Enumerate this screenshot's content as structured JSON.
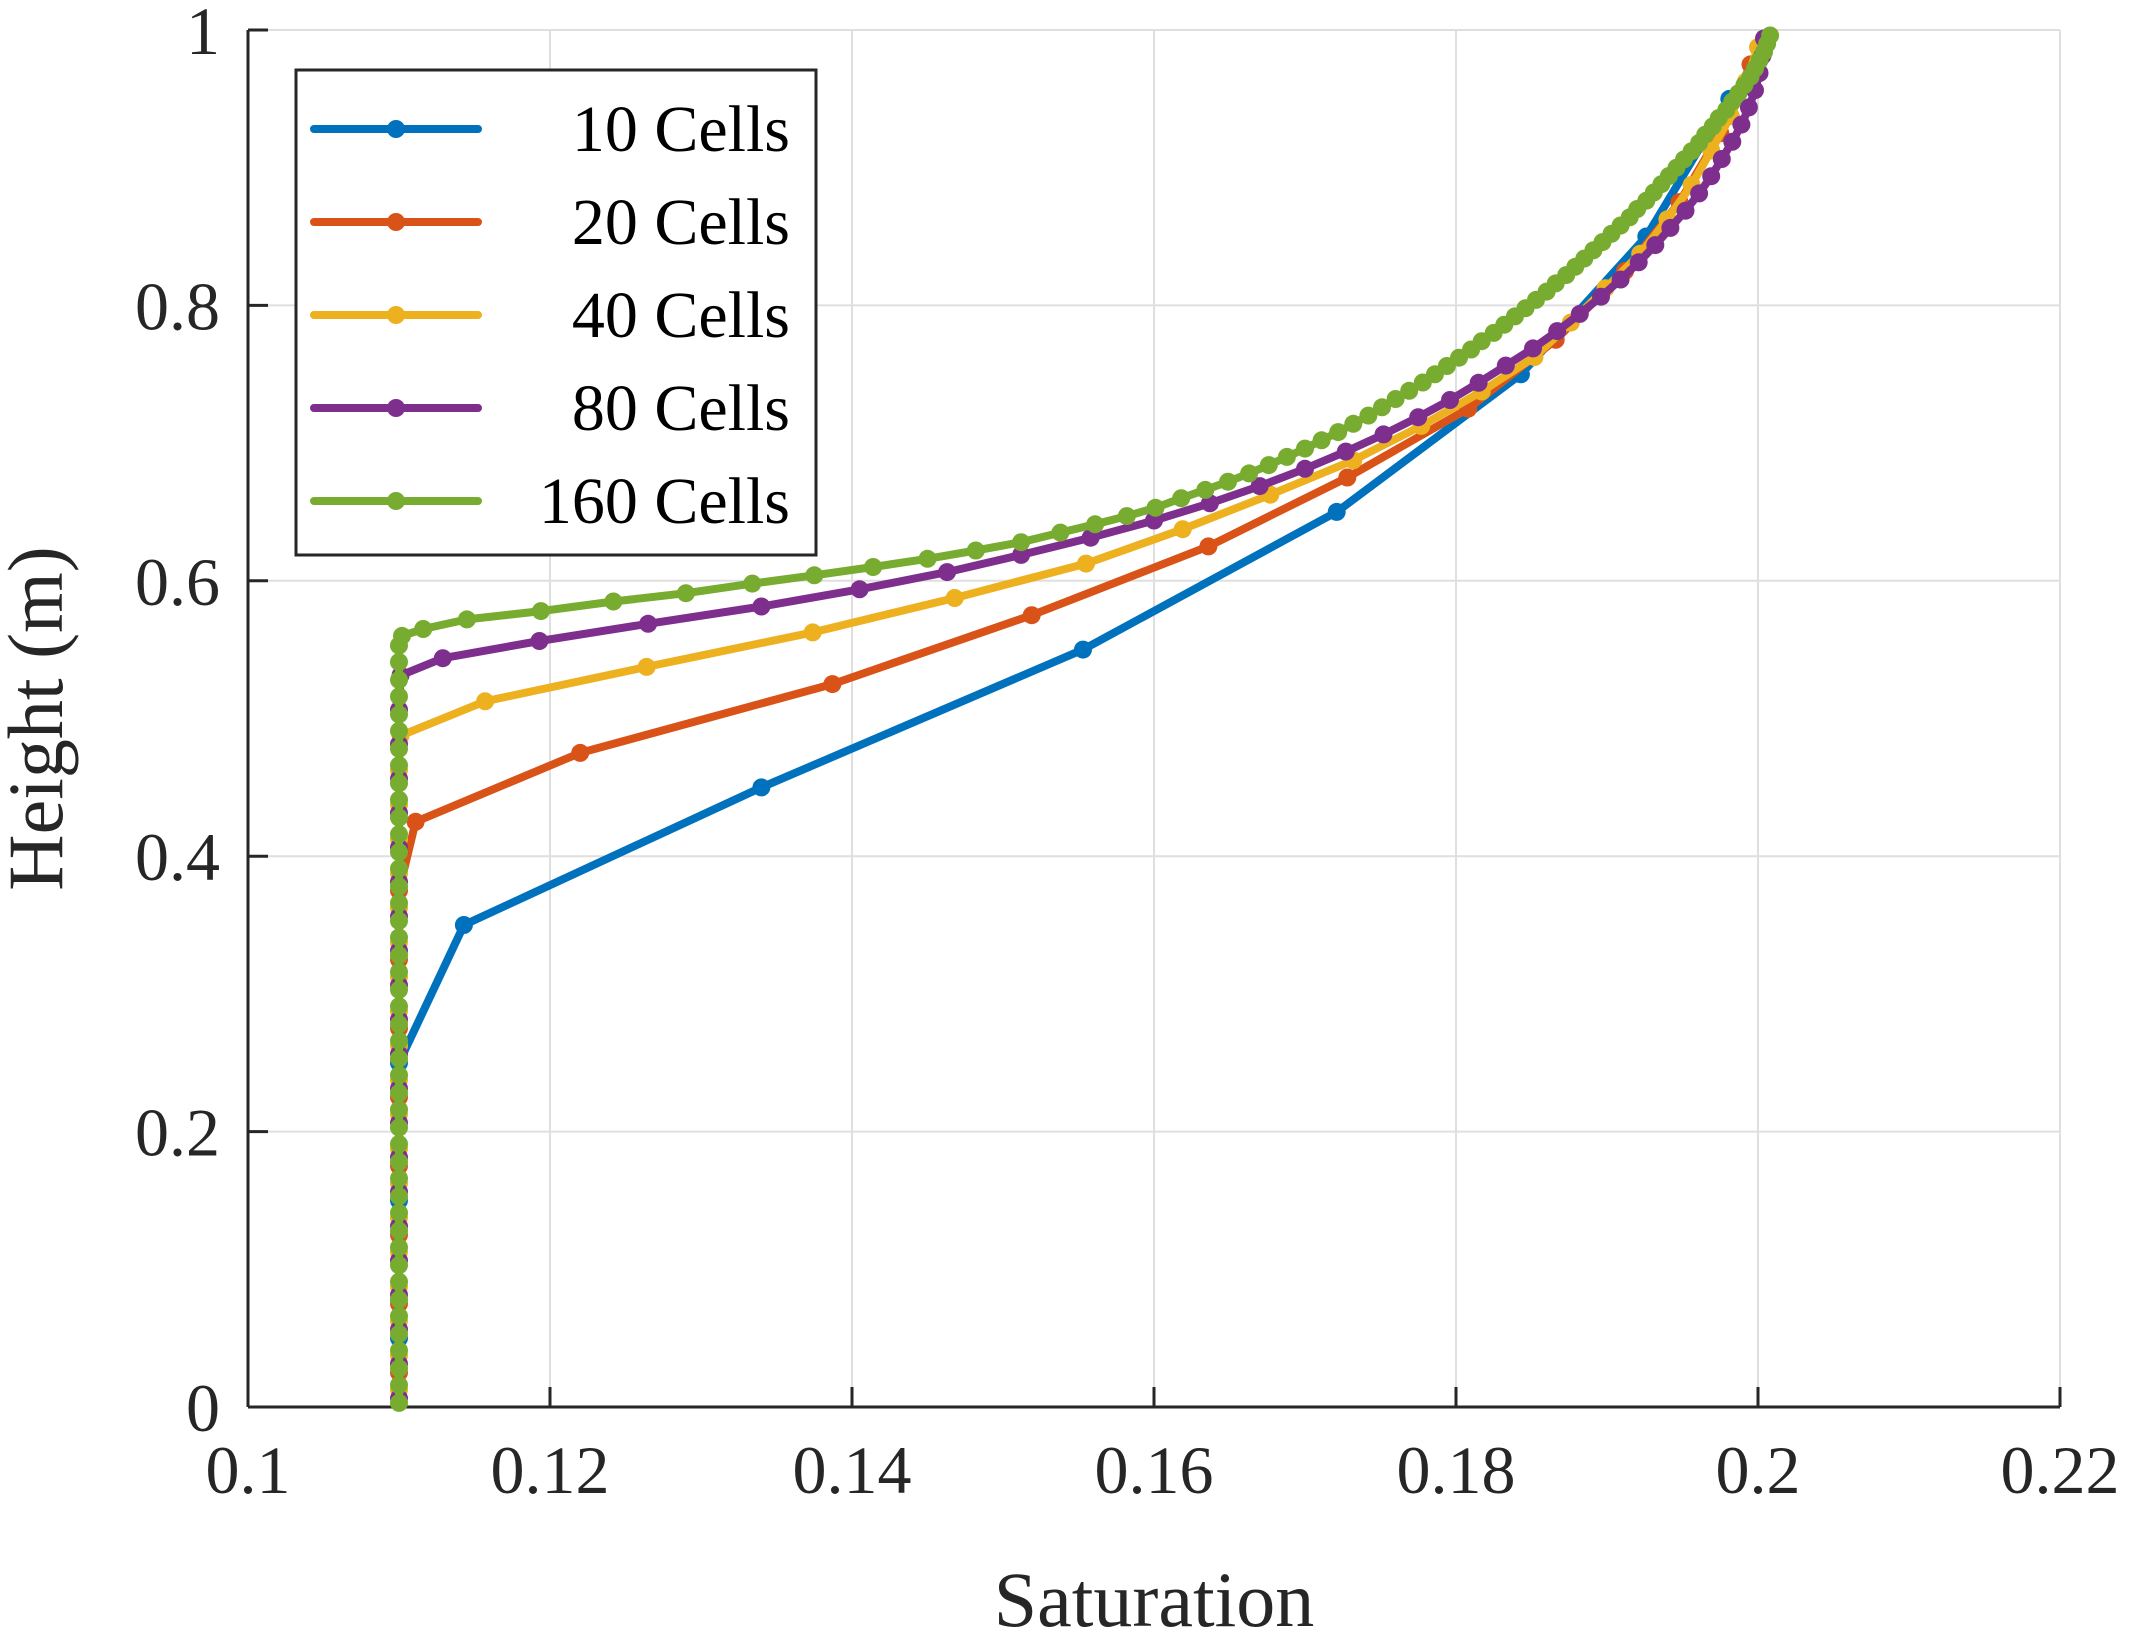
{
  "chart_data": {
    "type": "line",
    "xlabel": "Saturation",
    "ylabel": "Height (m)",
    "xlim": [
      0.1,
      0.22
    ],
    "ylim": [
      0,
      1
    ],
    "x_ticks": [
      0.1,
      0.12,
      0.14,
      0.16,
      0.18,
      0.2,
      0.22
    ],
    "y_ticks": [
      0,
      0.2,
      0.4,
      0.6,
      0.8,
      1
    ],
    "x_tick_labels": [
      "0.1",
      "0.12",
      "0.14",
      "0.16",
      "0.18",
      "0.2",
      "0.22"
    ],
    "y_tick_labels": [
      "0",
      "0.2",
      "0.4",
      "0.6",
      "0.8",
      "1"
    ],
    "grid": true,
    "legend_position": "top-left",
    "series": [
      {
        "name": "10 Cells",
        "color": "#0072BD",
        "points": [
          [
            0.11,
            0.05
          ],
          [
            0.11,
            0.15
          ],
          [
            0.11,
            0.25
          ],
          [
            0.1143,
            0.35
          ],
          [
            0.134,
            0.45
          ],
          [
            0.1553,
            0.55
          ],
          [
            0.1721,
            0.65
          ],
          [
            0.1843,
            0.75
          ],
          [
            0.1926,
            0.85
          ],
          [
            0.1981,
            0.95
          ]
        ]
      },
      {
        "name": "20 Cells",
        "color": "#D95319",
        "points": [
          [
            0.11,
            0.025
          ],
          [
            0.11,
            0.075
          ],
          [
            0.11,
            0.125
          ],
          [
            0.11,
            0.175
          ],
          [
            0.11,
            0.225
          ],
          [
            0.11,
            0.275
          ],
          [
            0.11,
            0.325
          ],
          [
            0.11,
            0.375
          ],
          [
            0.1111,
            0.425
          ],
          [
            0.122,
            0.475
          ],
          [
            0.1387,
            0.525
          ],
          [
            0.1519,
            0.575
          ],
          [
            0.1636,
            0.625
          ],
          [
            0.1728,
            0.675
          ],
          [
            0.1808,
            0.725
          ],
          [
            0.1866,
            0.775
          ],
          [
            0.1912,
            0.825
          ],
          [
            0.1948,
            0.875
          ],
          [
            0.1975,
            0.925
          ],
          [
            0.1995,
            0.975
          ]
        ]
      },
      {
        "name": "40 Cells",
        "color": "#EDB120",
        "points": [
          [
            0.11,
            0.0125
          ],
          [
            0.11,
            0.0375
          ],
          [
            0.11,
            0.0625
          ],
          [
            0.11,
            0.0875
          ],
          [
            0.11,
            0.1125
          ],
          [
            0.11,
            0.1375
          ],
          [
            0.11,
            0.1625
          ],
          [
            0.11,
            0.1875
          ],
          [
            0.11,
            0.2125
          ],
          [
            0.11,
            0.2375
          ],
          [
            0.11,
            0.2625
          ],
          [
            0.11,
            0.2875
          ],
          [
            0.11,
            0.3125
          ],
          [
            0.11,
            0.3375
          ],
          [
            0.11,
            0.3625
          ],
          [
            0.11,
            0.3875
          ],
          [
            0.11,
            0.4125
          ],
          [
            0.11,
            0.4375
          ],
          [
            0.11,
            0.4625
          ],
          [
            0.1101,
            0.4875
          ],
          [
            0.1157,
            0.5125
          ],
          [
            0.1264,
            0.5375
          ],
          [
            0.1374,
            0.5625
          ],
          [
            0.1468,
            0.5875
          ],
          [
            0.1555,
            0.6125
          ],
          [
            0.1619,
            0.6375
          ],
          [
            0.1677,
            0.6625
          ],
          [
            0.1732,
            0.6875
          ],
          [
            0.1777,
            0.7125
          ],
          [
            0.1817,
            0.7375
          ],
          [
            0.1852,
            0.7625
          ],
          [
            0.1876,
            0.7875
          ],
          [
            0.1899,
            0.8125
          ],
          [
            0.1922,
            0.8375
          ],
          [
            0.194,
            0.8625
          ],
          [
            0.1956,
            0.8875
          ],
          [
            0.1969,
            0.9125
          ],
          [
            0.1982,
            0.9375
          ],
          [
            0.1992,
            0.9625
          ],
          [
            0.2,
            0.9875
          ]
        ]
      },
      {
        "name": "80 Cells",
        "color": "#7E2F8E",
        "points": [
          [
            0.11,
            0.0063
          ],
          [
            0.11,
            0.0313
          ],
          [
            0.11,
            0.0563
          ],
          [
            0.11,
            0.0813
          ],
          [
            0.11,
            0.1063
          ],
          [
            0.11,
            0.1313
          ],
          [
            0.11,
            0.1563
          ],
          [
            0.11,
            0.1813
          ],
          [
            0.11,
            0.2063
          ],
          [
            0.11,
            0.2313
          ],
          [
            0.11,
            0.2563
          ],
          [
            0.11,
            0.2813
          ],
          [
            0.11,
            0.3063
          ],
          [
            0.11,
            0.3313
          ],
          [
            0.11,
            0.3563
          ],
          [
            0.11,
            0.3813
          ],
          [
            0.11,
            0.4063
          ],
          [
            0.11,
            0.4313
          ],
          [
            0.11,
            0.4563
          ],
          [
            0.11,
            0.4813
          ],
          [
            0.11,
            0.5063
          ],
          [
            0.1101,
            0.5313
          ],
          [
            0.1129,
            0.5438
          ],
          [
            0.1193,
            0.5563
          ],
          [
            0.1265,
            0.5688
          ],
          [
            0.134,
            0.5813
          ],
          [
            0.1405,
            0.5938
          ],
          [
            0.1463,
            0.6063
          ],
          [
            0.1512,
            0.6188
          ],
          [
            0.1558,
            0.6313
          ],
          [
            0.16,
            0.6438
          ],
          [
            0.1637,
            0.6563
          ],
          [
            0.167,
            0.6688
          ],
          [
            0.17,
            0.6813
          ],
          [
            0.1727,
            0.6938
          ],
          [
            0.1752,
            0.7063
          ],
          [
            0.1775,
            0.7188
          ],
          [
            0.1796,
            0.7313
          ],
          [
            0.1815,
            0.7438
          ],
          [
            0.1833,
            0.7563
          ],
          [
            0.1851,
            0.7688
          ],
          [
            0.1867,
            0.7813
          ],
          [
            0.1882,
            0.7938
          ],
          [
            0.1896,
            0.8063
          ],
          [
            0.1909,
            0.8188
          ],
          [
            0.1921,
            0.8313
          ],
          [
            0.1932,
            0.8438
          ],
          [
            0.1942,
            0.8563
          ],
          [
            0.1952,
            0.8688
          ],
          [
            0.1961,
            0.8813
          ],
          [
            0.1969,
            0.8938
          ],
          [
            0.1976,
            0.9063
          ],
          [
            0.1983,
            0.9188
          ],
          [
            0.1989,
            0.9313
          ],
          [
            0.1994,
            0.9438
          ],
          [
            0.1998,
            0.9563
          ],
          [
            0.2001,
            0.9688
          ],
          [
            0.2003,
            0.9813
          ],
          [
            0.2004,
            0.9938
          ]
        ]
      },
      {
        "name": "160 Cells",
        "color": "#77AC30",
        "points": [
          [
            0.11,
            0.003
          ],
          [
            0.11,
            0.016
          ],
          [
            0.11,
            0.028
          ],
          [
            0.11,
            0.041
          ],
          [
            0.11,
            0.053
          ],
          [
            0.11,
            0.066
          ],
          [
            0.11,
            0.078
          ],
          [
            0.11,
            0.091
          ],
          [
            0.11,
            0.103
          ],
          [
            0.11,
            0.116
          ],
          [
            0.11,
            0.128
          ],
          [
            0.11,
            0.141
          ],
          [
            0.11,
            0.153
          ],
          [
            0.11,
            0.166
          ],
          [
            0.11,
            0.178
          ],
          [
            0.11,
            0.191
          ],
          [
            0.11,
            0.203
          ],
          [
            0.11,
            0.216
          ],
          [
            0.11,
            0.228
          ],
          [
            0.11,
            0.241
          ],
          [
            0.11,
            0.253
          ],
          [
            0.11,
            0.266
          ],
          [
            0.11,
            0.278
          ],
          [
            0.11,
            0.291
          ],
          [
            0.11,
            0.303
          ],
          [
            0.11,
            0.316
          ],
          [
            0.11,
            0.328
          ],
          [
            0.11,
            0.341
          ],
          [
            0.11,
            0.353
          ],
          [
            0.11,
            0.366
          ],
          [
            0.11,
            0.378
          ],
          [
            0.11,
            0.391
          ],
          [
            0.11,
            0.403
          ],
          [
            0.11,
            0.416
          ],
          [
            0.11,
            0.428
          ],
          [
            0.11,
            0.441
          ],
          [
            0.11,
            0.453
          ],
          [
            0.11,
            0.466
          ],
          [
            0.11,
            0.478
          ],
          [
            0.11,
            0.491
          ],
          [
            0.11,
            0.503
          ],
          [
            0.11,
            0.516
          ],
          [
            0.11,
            0.528
          ],
          [
            0.11,
            0.541
          ],
          [
            0.11,
            0.553
          ],
          [
            0.1102,
            0.56
          ],
          [
            0.1116,
            0.565
          ],
          [
            0.1145,
            0.572
          ],
          [
            0.1194,
            0.578
          ],
          [
            0.1242,
            0.585
          ],
          [
            0.129,
            0.591
          ],
          [
            0.1334,
            0.598
          ],
          [
            0.1375,
            0.604
          ],
          [
            0.1414,
            0.61
          ],
          [
            0.145,
            0.616
          ],
          [
            0.1482,
            0.622
          ],
          [
            0.1512,
            0.628
          ],
          [
            0.1538,
            0.635
          ],
          [
            0.1561,
            0.641
          ],
          [
            0.1582,
            0.647
          ],
          [
            0.1601,
            0.653
          ],
          [
            0.1618,
            0.66
          ],
          [
            0.1634,
            0.666
          ],
          [
            0.1649,
            0.672
          ],
          [
            0.1663,
            0.678
          ],
          [
            0.1676,
            0.684
          ],
          [
            0.1688,
            0.69
          ],
          [
            0.17,
            0.696
          ],
          [
            0.1711,
            0.702
          ],
          [
            0.1722,
            0.708
          ],
          [
            0.1732,
            0.714
          ],
          [
            0.1742,
            0.72
          ],
          [
            0.1751,
            0.726
          ],
          [
            0.176,
            0.732
          ],
          [
            0.1769,
            0.738
          ],
          [
            0.1778,
            0.744
          ],
          [
            0.1786,
            0.75
          ],
          [
            0.1794,
            0.756
          ],
          [
            0.1802,
            0.762
          ],
          [
            0.181,
            0.768
          ],
          [
            0.1817,
            0.774
          ],
          [
            0.1825,
            0.78
          ],
          [
            0.1832,
            0.786
          ],
          [
            0.1839,
            0.792
          ],
          [
            0.1846,
            0.798
          ],
          [
            0.1853,
            0.804
          ],
          [
            0.186,
            0.81
          ],
          [
            0.1866,
            0.816
          ],
          [
            0.1873,
            0.822
          ],
          [
            0.1879,
            0.828
          ],
          [
            0.1885,
            0.834
          ],
          [
            0.1891,
            0.84
          ],
          [
            0.1897,
            0.846
          ],
          [
            0.1903,
            0.852
          ],
          [
            0.1909,
            0.858
          ],
          [
            0.1915,
            0.864
          ],
          [
            0.192,
            0.87
          ],
          [
            0.1926,
            0.876
          ],
          [
            0.1931,
            0.882
          ],
          [
            0.1936,
            0.888
          ],
          [
            0.1941,
            0.894
          ],
          [
            0.1946,
            0.9
          ],
          [
            0.1951,
            0.906
          ],
          [
            0.1956,
            0.912
          ],
          [
            0.1961,
            0.918
          ],
          [
            0.1965,
            0.924
          ],
          [
            0.197,
            0.93
          ],
          [
            0.1974,
            0.936
          ],
          [
            0.1979,
            0.942
          ],
          [
            0.1983,
            0.948
          ],
          [
            0.1987,
            0.954
          ],
          [
            0.1991,
            0.96
          ],
          [
            0.1995,
            0.966
          ],
          [
            0.1998,
            0.972
          ],
          [
            0.2001,
            0.978
          ],
          [
            0.2004,
            0.984
          ],
          [
            0.2006,
            0.99
          ],
          [
            0.2008,
            0.996
          ]
        ]
      }
    ]
  }
}
